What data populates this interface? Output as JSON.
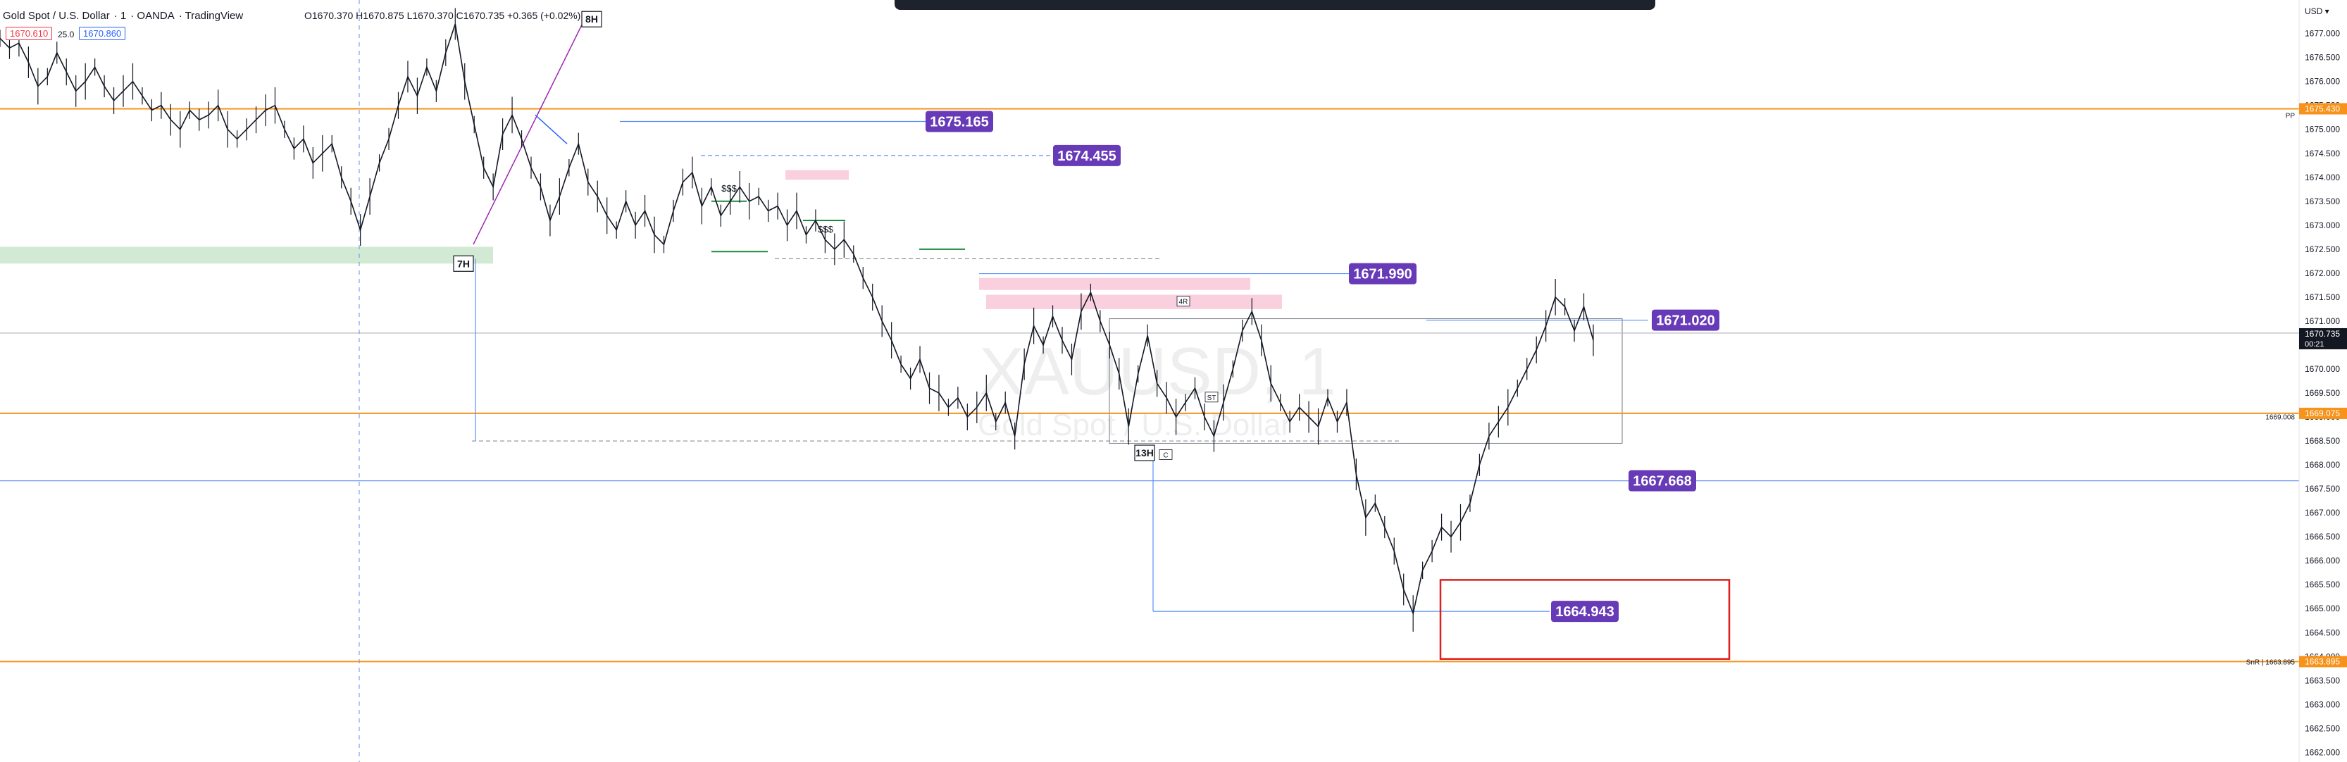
{
  "header": {
    "symbol": "Gold Spot / U.S. Dollar",
    "interval": "1",
    "broker": "OANDA",
    "platform": "TradingView",
    "ohlc": "O1670.370  H1670.875  L1670.370  C1670.735  +0.365 (+0.02%)",
    "bid": "1670.610",
    "spread": "25.0",
    "ask": "1670.860"
  },
  "currency": "USD",
  "price_axis": {
    "min": 1661.8,
    "max": 1677.7,
    "ticks": [
      "1677.000",
      "1676.500",
      "1676.000",
      "1675.500",
      "1675.000",
      "1674.500",
      "1674.000",
      "1673.500",
      "1673.000",
      "1672.500",
      "1672.000",
      "1671.500",
      "1671.000",
      "1670.500",
      "1670.000",
      "1669.500",
      "1669.000",
      "1668.500",
      "1668.000",
      "1667.500",
      "1667.000",
      "1666.500",
      "1666.000",
      "1665.500",
      "1665.000",
      "1664.500",
      "1664.000",
      "1663.500",
      "1663.000",
      "1662.500",
      "1662.000"
    ]
  },
  "axis_tags": [
    {
      "text": "1675.430",
      "price": 1675.43,
      "color": "#f7931a"
    },
    {
      "text": "1670.735",
      "sub": "00:21",
      "price": 1670.735,
      "color": "#131722"
    },
    {
      "text": "1669.075",
      "price": 1669.075,
      "color": "#f7931a"
    },
    {
      "text": "1663.895",
      "price": 1663.895,
      "color": "#f7931a"
    }
  ],
  "axis_side_labels": [
    {
      "text": "PP",
      "price": 1675.3
    },
    {
      "text": "1669.008",
      "price": 1669.008
    },
    {
      "text": "SnR | 1663.895",
      "price": 1663.895
    }
  ],
  "horizontal_lines": [
    {
      "price": 1675.43,
      "color": "#f7931a"
    },
    {
      "price": 1669.075,
      "color": "#f7931a"
    },
    {
      "price": 1663.895,
      "color": "#f7931a"
    },
    {
      "price": 1667.668,
      "color": "#5b8ff9"
    },
    {
      "price": 1670.75,
      "color": "#b2b5be"
    }
  ],
  "price_labels": [
    {
      "text": "1675.165",
      "price": 1675.165
    },
    {
      "text": "1674.455",
      "price": 1674.455
    },
    {
      "text": "1671.990",
      "price": 1671.99
    },
    {
      "text": "1671.020",
      "price": 1671.02
    },
    {
      "text": "1667.668",
      "price": 1667.668
    },
    {
      "text": "1664.943",
      "price": 1664.943
    }
  ],
  "time_markers": [
    "8H",
    "7H",
    "13H"
  ],
  "liquidity_marks": [
    "$$$",
    "$$$"
  ],
  "small_tags": [
    "4R",
    "ST",
    "C"
  ],
  "watermark": {
    "line1": "XAUUSD, 1",
    "line2": "Gold Spot / U.S. Dollar"
  },
  "colors": {
    "accent_label": "#673ab7",
    "orange_line": "#f7931a",
    "blue_line": "#5b8ff9",
    "red_box": "#e01e1e",
    "zone_green": "#a5d6a7",
    "zone_pink": "#f8bbd0"
  },
  "chart_data": {
    "type": "line",
    "title": "Gold Spot / U.S. Dollar",
    "xlabel": "",
    "ylabel": "",
    "ylim": [
      1661.8,
      1677.7
    ],
    "grid": false,
    "series": [
      {
        "values": [
          1676.9,
          1676.7,
          1676.8,
          1676.4,
          1675.9,
          1676.1,
          1676.6,
          1676.2,
          1675.8,
          1676.0,
          1676.3,
          1675.9,
          1675.6,
          1675.8,
          1676.0,
          1675.7,
          1675.4,
          1675.5,
          1675.2,
          1675.0,
          1675.4,
          1675.2,
          1675.3,
          1675.5,
          1675.0,
          1674.8,
          1675.0,
          1675.2,
          1675.4,
          1675.5,
          1675.0,
          1674.6,
          1674.8,
          1674.3,
          1674.5,
          1674.7,
          1674.0,
          1673.5,
          1672.9,
          1673.6,
          1674.3,
          1674.8,
          1675.5,
          1676.1,
          1675.7,
          1676.3,
          1675.8,
          1676.6,
          1677.2,
          1676.0,
          1675.1,
          1674.2,
          1673.8,
          1674.9,
          1675.3,
          1674.8,
          1674.2,
          1673.8,
          1673.1,
          1673.6,
          1674.2,
          1674.7,
          1673.9,
          1673.6,
          1673.2,
          1672.9,
          1673.5,
          1673.0,
          1673.3,
          1672.8,
          1672.6,
          1673.3,
          1673.9,
          1674.1,
          1673.4,
          1673.8,
          1673.2,
          1673.5,
          1673.8,
          1673.5,
          1673.6,
          1673.3,
          1673.4,
          1673.0,
          1673.3,
          1672.8,
          1673.1,
          1672.7,
          1672.5,
          1672.7,
          1672.4,
          1671.9,
          1671.5,
          1671.0,
          1670.6,
          1670.1,
          1669.8,
          1670.2,
          1669.6,
          1669.5,
          1669.2,
          1669.4,
          1669.0,
          1669.2,
          1669.5,
          1668.9,
          1669.3,
          1668.6,
          1670.1,
          1670.9,
          1670.5,
          1671.1,
          1670.6,
          1670.2,
          1671.2,
          1671.6,
          1671.0,
          1670.5,
          1669.9,
          1668.8,
          1669.9,
          1670.7,
          1669.7,
          1669.4,
          1669.0,
          1669.3,
          1669.6,
          1669.0,
          1668.6,
          1669.3,
          1670.0,
          1670.8,
          1671.2,
          1670.6,
          1669.7,
          1669.3,
          1668.9,
          1669.2,
          1669.0,
          1668.8,
          1669.4,
          1668.9,
          1669.3,
          1667.8,
          1666.9,
          1667.2,
          1666.7,
          1666.2,
          1665.4,
          1664.9,
          1665.8,
          1666.2,
          1666.7,
          1666.5,
          1666.8,
          1667.2,
          1668.0,
          1668.6,
          1668.9,
          1669.2,
          1669.6,
          1670.0,
          1670.4,
          1670.9,
          1671.5,
          1671.3,
          1670.8,
          1671.3,
          1670.6
        ]
      }
    ]
  }
}
